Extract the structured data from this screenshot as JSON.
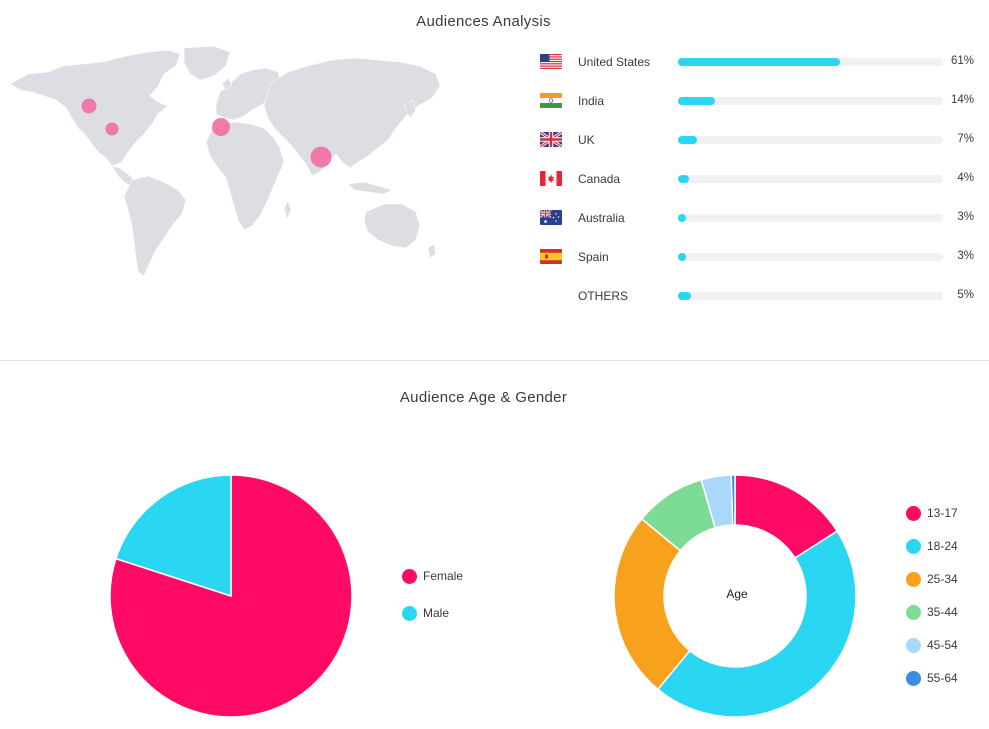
{
  "sections": {
    "audiences_title": "Audiences Analysis",
    "age_gender_title": "Audience Age & Gender"
  },
  "countries": [
    {
      "name": "United States",
      "value": "61%",
      "share": 61,
      "flag": "us-flag-icon"
    },
    {
      "name": "India",
      "value": "14%",
      "share": 14,
      "flag": "india-flag-icon"
    },
    {
      "name": "UK",
      "value": "7%",
      "share": 7,
      "flag": "uk-flag-icon"
    },
    {
      "name": "Canada",
      "value": "4%",
      "share": 4,
      "flag": "canada-flag-icon"
    },
    {
      "name": "Australia",
      "value": "3%",
      "share": 3,
      "flag": "australia-flag-icon"
    },
    {
      "name": "Spain",
      "value": "3%",
      "share": 3,
      "flag": "spain-flag-icon"
    },
    {
      "name": "OTHERS",
      "value": "5%",
      "share": 5,
      "flag": ""
    }
  ],
  "map_markers": [
    "Canada",
    "United States",
    "Spain",
    "India"
  ],
  "colors": {
    "accent": "#2bd6f2",
    "female": "#ff0a64",
    "male": "#2bd6f2",
    "marker": "#f06ea3",
    "map_land": "#dcdee4"
  },
  "chart_data": [
    {
      "type": "pie",
      "labels": [
        "Female",
        "Male"
      ],
      "values": [
        80,
        20
      ],
      "colors": [
        "#ff0a64",
        "#2bd6f2"
      ]
    },
    {
      "type": "pie",
      "variant": "donut",
      "center_label": "Age",
      "labels": [
        "13-17",
        "18-24",
        "25-34",
        "35-44",
        "45-54",
        "55-64"
      ],
      "values": [
        16,
        45,
        25,
        9.5,
        4,
        0.5
      ],
      "colors": [
        "#ff0a64",
        "#2bd6f2",
        "#f7a11d",
        "#7cdc95",
        "#a9d8fb",
        "#3a8de0"
      ]
    }
  ]
}
